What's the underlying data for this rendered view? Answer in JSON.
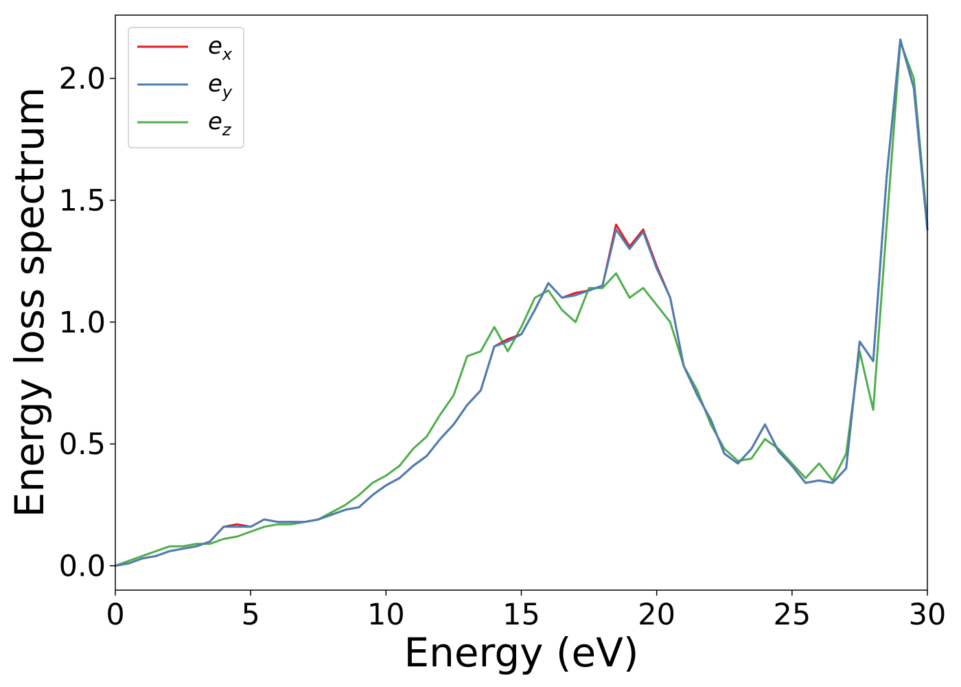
{
  "chart_data": {
    "type": "line",
    "xlabel": "Energy (eV)",
    "ylabel": "Energy loss spectrum",
    "xlim": [
      0,
      30
    ],
    "ylim": [
      -0.1,
      2.26
    ],
    "xticks": [
      0,
      5,
      10,
      15,
      20,
      25,
      30
    ],
    "xtick_labels": [
      "0",
      "5",
      "10",
      "15",
      "20",
      "25",
      "30"
    ],
    "yticks": [
      0.0,
      0.5,
      1.0,
      1.5,
      2.0
    ],
    "ytick_labels": [
      "0.0",
      "0.5",
      "1.0",
      "1.5",
      "2.0"
    ],
    "grid": false,
    "legend_position": "top-left",
    "series": [
      {
        "name": "e_x",
        "label_main": "e",
        "label_sub": "x",
        "color": "#e41a1c",
        "x": [
          0,
          0.5,
          1,
          1.5,
          2,
          2.5,
          3,
          3.5,
          4,
          4.5,
          5,
          5.5,
          6,
          6.5,
          7,
          7.5,
          8,
          8.5,
          9,
          9.5,
          10,
          10.5,
          11,
          11.5,
          12,
          12.5,
          13,
          13.5,
          14,
          14.5,
          15,
          15.5,
          16,
          16.5,
          17,
          17.5,
          18,
          18.5,
          19,
          19.5,
          20,
          20.5,
          21,
          21.5,
          22,
          22.5,
          23,
          23.5,
          24,
          24.5,
          25,
          25.5,
          26,
          26.5,
          27,
          27.5,
          28,
          28.5,
          29,
          29.5,
          30
        ],
        "y": [
          0.0,
          0.01,
          0.03,
          0.04,
          0.06,
          0.07,
          0.08,
          0.1,
          0.16,
          0.17,
          0.16,
          0.19,
          0.18,
          0.18,
          0.18,
          0.19,
          0.21,
          0.23,
          0.24,
          0.29,
          0.33,
          0.36,
          0.41,
          0.45,
          0.52,
          0.58,
          0.66,
          0.72,
          0.9,
          0.93,
          0.95,
          1.05,
          1.16,
          1.1,
          1.12,
          1.13,
          1.15,
          1.4,
          1.31,
          1.38,
          1.23,
          1.1,
          0.82,
          0.7,
          0.6,
          0.46,
          0.42,
          0.48,
          0.58,
          0.47,
          0.41,
          0.34,
          0.35,
          0.34,
          0.4,
          0.92,
          0.84,
          1.6,
          2.16,
          1.96,
          1.38
        ]
      },
      {
        "name": "e_y",
        "label_main": "e",
        "label_sub": "y",
        "color": "#4a7fb5",
        "x": [
          0,
          0.5,
          1,
          1.5,
          2,
          2.5,
          3,
          3.5,
          4,
          4.5,
          5,
          5.5,
          6,
          6.5,
          7,
          7.5,
          8,
          8.5,
          9,
          9.5,
          10,
          10.5,
          11,
          11.5,
          12,
          12.5,
          13,
          13.5,
          14,
          14.5,
          15,
          15.5,
          16,
          16.5,
          17,
          17.5,
          18,
          18.5,
          19,
          19.5,
          20,
          20.5,
          21,
          21.5,
          22,
          22.5,
          23,
          23.5,
          24,
          24.5,
          25,
          25.5,
          26,
          26.5,
          27,
          27.5,
          28,
          28.5,
          29,
          29.5,
          30
        ],
        "y": [
          0.0,
          0.01,
          0.03,
          0.04,
          0.06,
          0.07,
          0.08,
          0.1,
          0.16,
          0.16,
          0.16,
          0.19,
          0.18,
          0.18,
          0.18,
          0.19,
          0.21,
          0.23,
          0.24,
          0.29,
          0.33,
          0.36,
          0.41,
          0.45,
          0.52,
          0.58,
          0.66,
          0.72,
          0.9,
          0.92,
          0.95,
          1.05,
          1.16,
          1.1,
          1.11,
          1.13,
          1.15,
          1.38,
          1.3,
          1.37,
          1.22,
          1.1,
          0.82,
          0.7,
          0.6,
          0.46,
          0.42,
          0.48,
          0.58,
          0.47,
          0.41,
          0.34,
          0.35,
          0.34,
          0.4,
          0.92,
          0.84,
          1.6,
          2.16,
          1.96,
          1.38
        ]
      },
      {
        "name": "e_z",
        "label_main": "e",
        "label_sub": "z",
        "color": "#4daf4a",
        "x": [
          0,
          0.5,
          1,
          1.5,
          2,
          2.5,
          3,
          3.5,
          4,
          4.5,
          5,
          5.5,
          6,
          6.5,
          7,
          7.5,
          8,
          8.5,
          9,
          9.5,
          10,
          10.5,
          11,
          11.5,
          12,
          12.5,
          13,
          13.5,
          14,
          14.5,
          15,
          15.5,
          16,
          16.5,
          17,
          17.5,
          18,
          18.5,
          19,
          19.5,
          20,
          20.5,
          21,
          21.5,
          22,
          22.5,
          23,
          23.5,
          24,
          24.5,
          25,
          25.5,
          26,
          26.5,
          27,
          27.5,
          28,
          28.5,
          29,
          29.5,
          30
        ],
        "y": [
          0.0,
          0.02,
          0.04,
          0.06,
          0.08,
          0.08,
          0.09,
          0.09,
          0.11,
          0.12,
          0.14,
          0.16,
          0.17,
          0.17,
          0.18,
          0.19,
          0.22,
          0.25,
          0.29,
          0.34,
          0.37,
          0.41,
          0.48,
          0.53,
          0.62,
          0.7,
          0.86,
          0.88,
          0.98,
          0.88,
          0.98,
          1.1,
          1.13,
          1.05,
          1.0,
          1.14,
          1.14,
          1.2,
          1.1,
          1.14,
          1.07,
          1.0,
          0.82,
          0.72,
          0.58,
          0.48,
          0.43,
          0.44,
          0.52,
          0.48,
          0.42,
          0.36,
          0.42,
          0.35,
          0.46,
          0.88,
          0.64,
          1.4,
          2.15,
          2.0,
          1.4
        ]
      }
    ]
  }
}
